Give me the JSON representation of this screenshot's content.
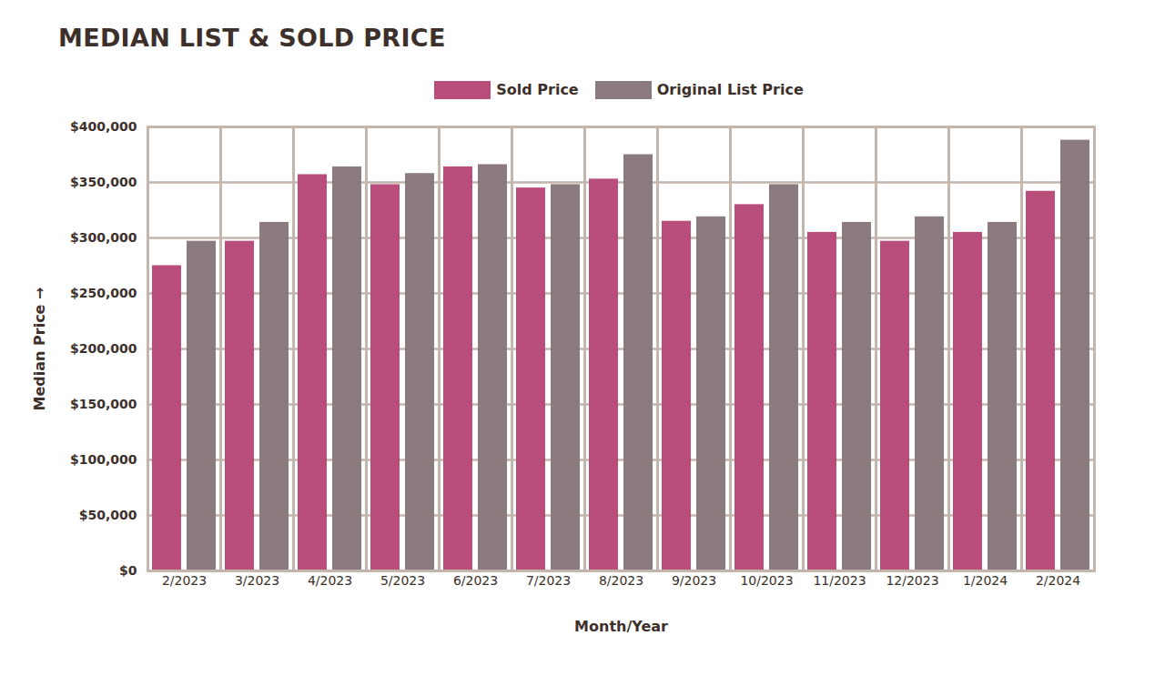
{
  "chart_data": {
    "type": "bar",
    "title": "MEDIAN LIST & SOLD PRICE",
    "x_label": "Month/Year",
    "y_label": "Median Price",
    "categories": [
      "2/2023",
      "3/2023",
      "4/2023",
      "5/2023",
      "6/2023",
      "7/2023",
      "8/2023",
      "9/2023",
      "10/2023",
      "11/2023",
      "12/2023",
      "1/2024",
      "2/2024"
    ],
    "series": [
      {
        "name": "Sold Price",
        "color": "#b94e7a",
        "values": [
          275000,
          297000,
          357000,
          348000,
          364000,
          345000,
          353000,
          315000,
          330000,
          305000,
          297000,
          305000,
          342000
        ]
      },
      {
        "name": "Original List Price",
        "color": "#8b7b7e",
        "values": [
          297000,
          314000,
          364000,
          358000,
          366000,
          348000,
          375000,
          319000,
          348000,
          314000,
          319000,
          314000,
          388000
        ]
      }
    ],
    "ylim": [
      0,
      400000
    ],
    "yticks": [
      {
        "value": 0,
        "label": "$0"
      },
      {
        "value": 50000,
        "label": "$50,000"
      },
      {
        "value": 100000,
        "label": "$100,000"
      },
      {
        "value": 150000,
        "label": "$150,000"
      },
      {
        "value": 200000,
        "label": "$200,000"
      },
      {
        "value": 250000,
        "label": "$250,000"
      },
      {
        "value": 300000,
        "label": "$300,000"
      },
      {
        "value": 350000,
        "label": "$350,000"
      },
      {
        "value": 400000,
        "label": "$400,000"
      }
    ],
    "grid": true,
    "legend": "top"
  }
}
